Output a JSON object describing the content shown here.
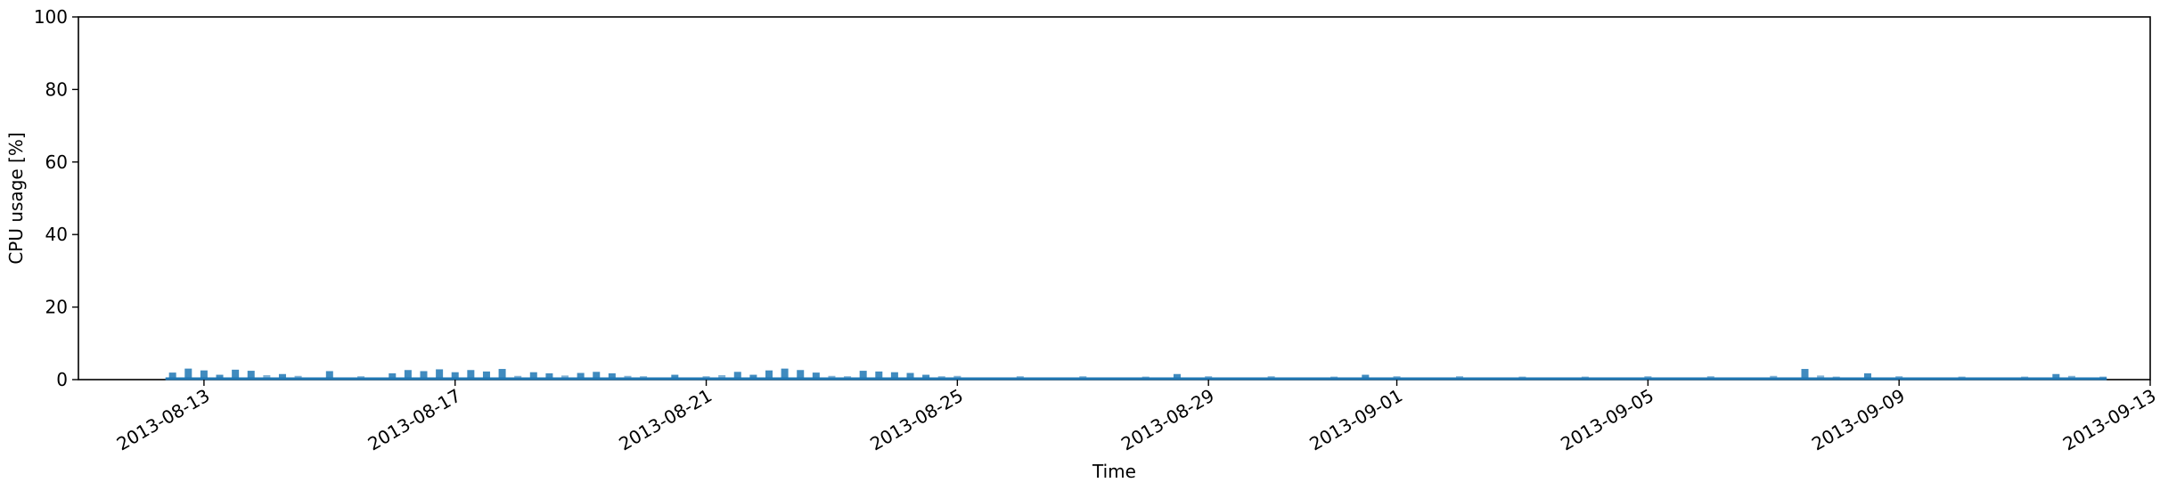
{
  "chart_data": {
    "type": "scatter",
    "title": "",
    "xlabel": "Time",
    "ylabel": "CPU usage [%]",
    "xlim": [
      "2013-08-11",
      "2013-09-13"
    ],
    "ylim": [
      0,
      100
    ],
    "x_ticks": [
      "2013-08-13",
      "2013-08-17",
      "2013-08-21",
      "2013-08-25",
      "2013-08-29",
      "2013-09-01",
      "2013-09-05",
      "2013-09-09",
      "2013-09-13"
    ],
    "y_ticks": [
      "0",
      "20",
      "40",
      "60",
      "80",
      "100"
    ],
    "grid": false,
    "legend": "none",
    "colors": {
      "series": "#1f77b4",
      "axis": "#000000",
      "background": "#ffffff"
    },
    "series": [
      {
        "x": [
          "2013-08-12T12:00",
          "2013-08-12T18:00",
          "2013-08-13T00:00",
          "2013-08-13T06:00",
          "2013-08-13T12:00",
          "2013-08-13T18:00",
          "2013-08-14T00:00",
          "2013-08-14T06:00",
          "2013-08-14T12:00",
          "2013-08-15T00:00",
          "2013-08-15T12:00",
          "2013-08-16T00:00",
          "2013-08-16T06:00",
          "2013-08-16T12:00",
          "2013-08-16T18:00",
          "2013-08-17T00:00",
          "2013-08-17T06:00",
          "2013-08-17T12:00",
          "2013-08-17T18:00",
          "2013-08-18T00:00",
          "2013-08-18T06:00",
          "2013-08-18T12:00",
          "2013-08-18T18:00",
          "2013-08-19T00:00",
          "2013-08-19T06:00",
          "2013-08-19T12:00",
          "2013-08-19T18:00",
          "2013-08-20T00:00",
          "2013-08-20T12:00",
          "2013-08-21T00:00",
          "2013-08-21T06:00",
          "2013-08-21T12:00",
          "2013-08-21T18:00",
          "2013-08-22T00:00",
          "2013-08-22T06:00",
          "2013-08-22T12:00",
          "2013-08-22T18:00",
          "2013-08-23T00:00",
          "2013-08-23T06:00",
          "2013-08-23T12:00",
          "2013-08-23T18:00",
          "2013-08-24T00:00",
          "2013-08-24T06:00",
          "2013-08-24T12:00",
          "2013-08-24T18:00",
          "2013-08-25T00:00",
          "2013-08-26T00:00",
          "2013-08-27T00:00",
          "2013-08-28T00:00",
          "2013-08-28T12:00",
          "2013-08-29T00:00",
          "2013-08-30T00:00",
          "2013-08-31T00:00",
          "2013-08-31T12:00",
          "2013-09-01T00:00",
          "2013-09-02T00:00",
          "2013-09-03T00:00",
          "2013-09-04T00:00",
          "2013-09-05T00:00",
          "2013-09-06T00:00",
          "2013-09-07T00:00",
          "2013-09-07T12:00",
          "2013-09-07T18:00",
          "2013-09-08T00:00",
          "2013-09-08T12:00",
          "2013-09-09T00:00",
          "2013-09-10T00:00",
          "2013-09-11T00:00",
          "2013-09-11T12:00",
          "2013-09-11T18:00",
          "2013-09-12T06:00"
        ],
        "values": [
          1.2,
          2.3,
          1.8,
          0.6,
          2.0,
          1.7,
          0.5,
          0.8,
          0.3,
          1.6,
          0.2,
          1.0,
          1.9,
          1.6,
          2.1,
          1.3,
          1.9,
          1.5,
          2.2,
          0.3,
          1.3,
          1.0,
          0.4,
          1.1,
          1.4,
          1.0,
          0.3,
          0.2,
          0.6,
          0.2,
          0.5,
          1.4,
          0.6,
          1.8,
          2.3,
          1.9,
          1.2,
          0.3,
          0.2,
          1.7,
          1.5,
          1.3,
          1.1,
          0.6,
          0.2,
          0.3,
          0.2,
          0.2,
          0.1,
          0.8,
          0.2,
          0.2,
          0.1,
          0.6,
          0.2,
          0.2,
          0.1,
          0.1,
          0.2,
          0.2,
          0.3,
          2.2,
          0.4,
          0.1,
          1.0,
          0.2,
          0.1,
          0.1,
          0.8,
          0.3,
          0.1
        ]
      }
    ]
  }
}
